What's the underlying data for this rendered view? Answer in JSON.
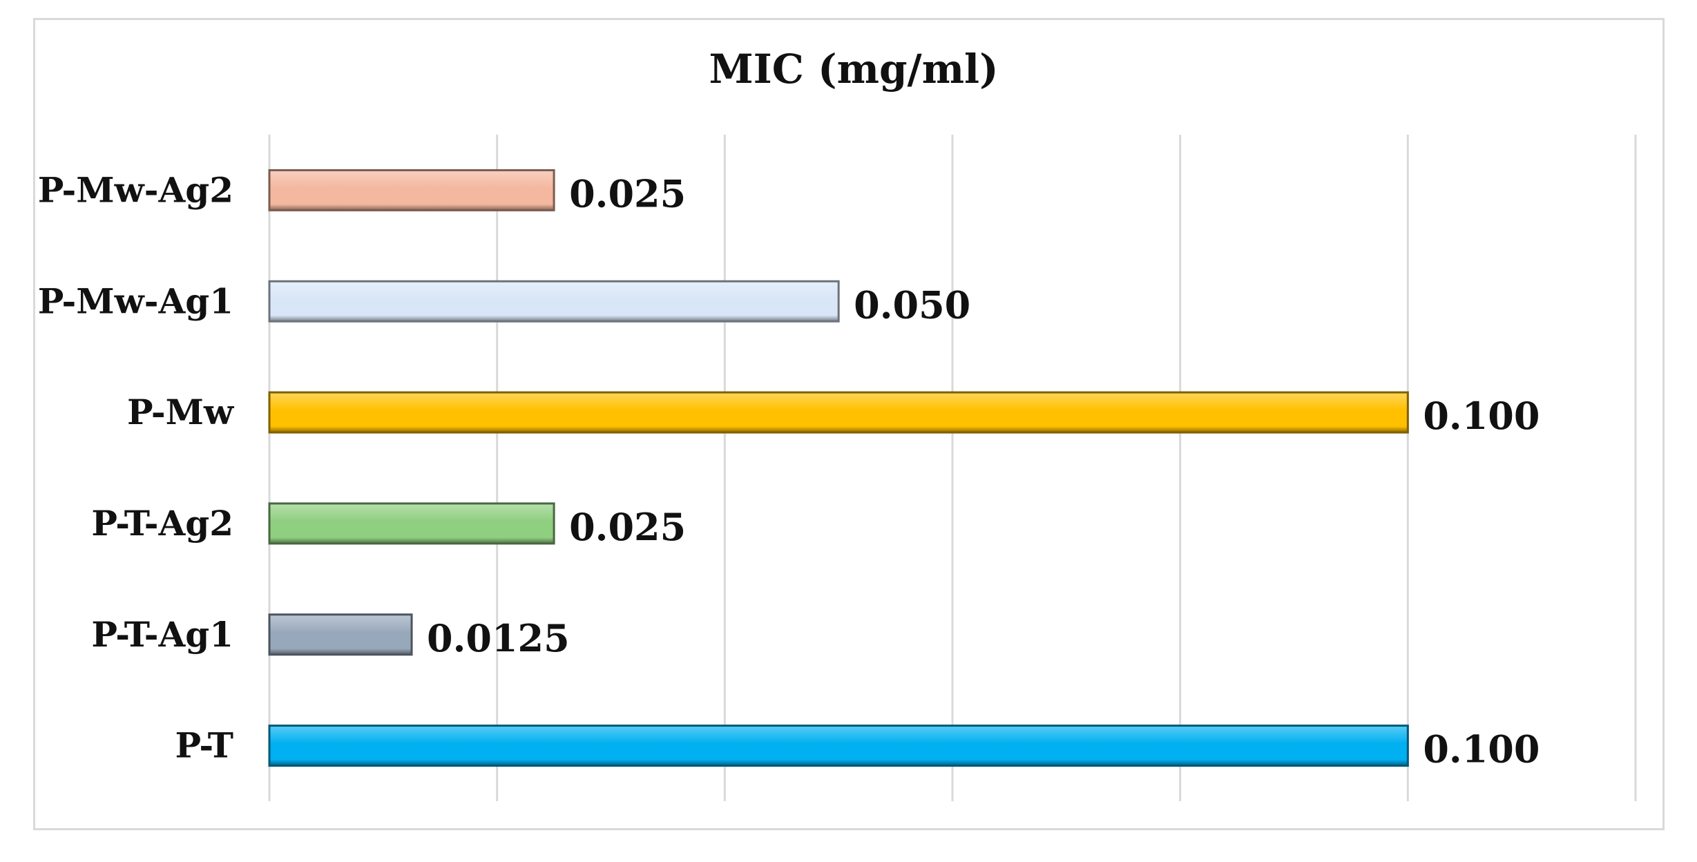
{
  "chart_data": {
    "type": "bar",
    "orientation": "horizontal",
    "title": "MIC (mg/ml)",
    "xlabel": "",
    "ylabel": "",
    "xlim": [
      0,
      0.12
    ],
    "grid": true,
    "categories": [
      "P-Mw-Ag2",
      "P-Mw-Ag1",
      "P-Mw",
      "P-T-Ag2",
      "P-T-Ag1",
      "P-T"
    ],
    "values": [
      0.025,
      0.05,
      0.1,
      0.025,
      0.0125,
      0.1
    ],
    "value_labels": [
      "0.025",
      "0.050",
      "0.100",
      "0.025",
      "0.0125",
      "0.100"
    ],
    "colors": [
      "#f4b79f",
      "#d9e6f7",
      "#ffc000",
      "#8fcf80",
      "#98a8bb",
      "#00b0f0"
    ]
  }
}
